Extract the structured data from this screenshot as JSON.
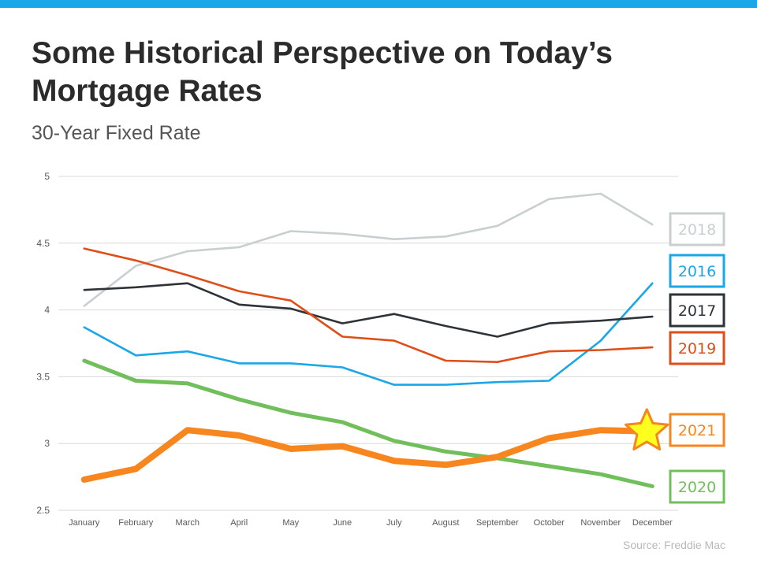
{
  "header": {
    "title": "Some Historical Perspective on Today’s Mortgage Rates",
    "subtitle": "30-Year Fixed Rate"
  },
  "footer": {
    "source": "Source: Freddie Mac"
  },
  "colors": {
    "accent_bar": "#1aa7e8"
  },
  "chart_data": {
    "type": "line",
    "title": "Some Historical Perspective on Today’s Mortgage Rates",
    "subtitle": "30-Year Fixed Rate",
    "xlabel": "",
    "ylabel": "",
    "ylim": [
      2.5,
      5
    ],
    "y_ticks": [
      "5",
      "4.5",
      "4",
      "3.5",
      "3",
      "2.5"
    ],
    "grid": true,
    "legend": "right, labels boxed next to line ends",
    "categories": [
      "January",
      "February",
      "March",
      "April",
      "May",
      "June",
      "July",
      "August",
      "September",
      "October",
      "November",
      "December"
    ],
    "series": [
      {
        "name": "2018",
        "color": "#c9cfd1",
        "emphasis": "thin",
        "values": [
          4.03,
          4.33,
          4.44,
          4.47,
          4.59,
          4.57,
          4.53,
          4.55,
          4.63,
          4.83,
          4.87,
          4.64
        ]
      },
      {
        "name": "2016",
        "color": "#1aa7e8",
        "emphasis": "thin",
        "values": [
          3.87,
          3.66,
          3.69,
          3.6,
          3.6,
          3.57,
          3.44,
          3.44,
          3.46,
          3.47,
          3.77,
          4.2
        ]
      },
      {
        "name": "2017",
        "color": "#2d3337",
        "emphasis": "thin",
        "values": [
          4.15,
          4.17,
          4.2,
          4.04,
          4.01,
          3.9,
          3.97,
          3.88,
          3.8,
          3.9,
          3.92,
          3.95
        ]
      },
      {
        "name": "2019",
        "color": "#e04e17",
        "emphasis": "thin",
        "values": [
          4.46,
          4.37,
          4.26,
          4.14,
          4.07,
          3.8,
          3.77,
          3.62,
          3.61,
          3.69,
          3.7,
          3.72
        ]
      },
      {
        "name": "2020",
        "color": "#70bf5a",
        "emphasis": "medium",
        "values": [
          3.62,
          3.47,
          3.45,
          3.33,
          3.23,
          3.16,
          3.02,
          2.94,
          2.89,
          2.83,
          2.77,
          2.68
        ]
      },
      {
        "name": "2021",
        "color": "#f7861e",
        "emphasis": "bold",
        "end_marker": "star",
        "values": [
          2.73,
          2.81,
          3.1,
          3.06,
          2.96,
          2.98,
          2.87,
          2.84,
          2.9,
          3.04,
          3.1,
          3.09
        ]
      }
    ]
  }
}
